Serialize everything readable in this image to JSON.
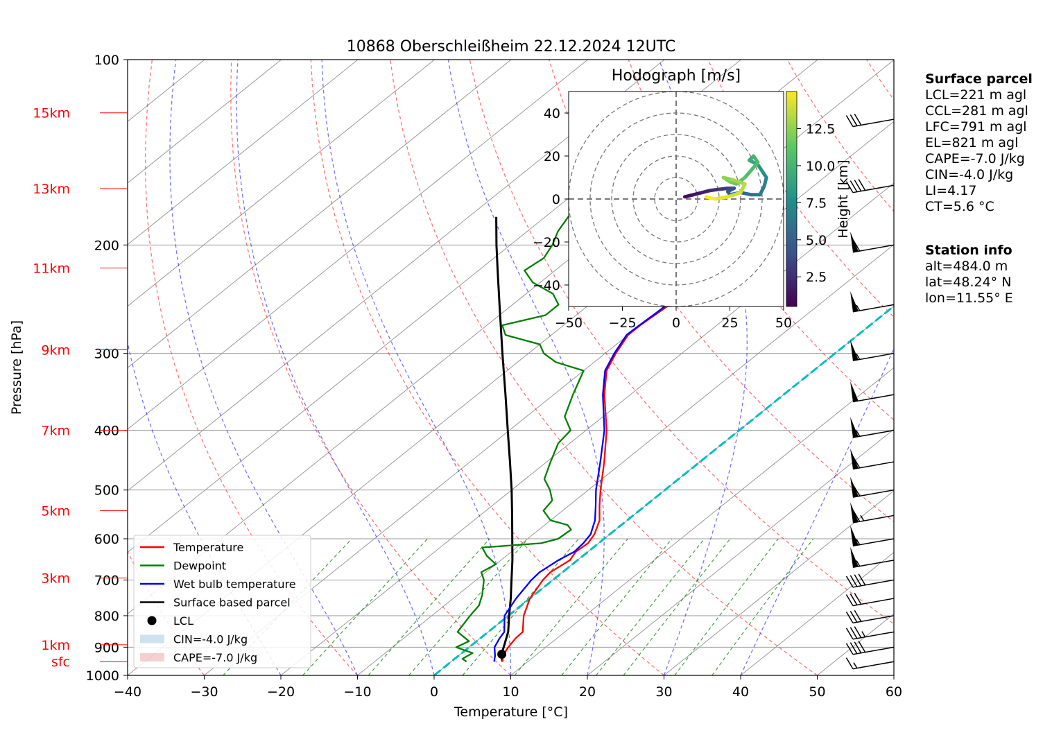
{
  "title": "10868 Oberschleißheim 22.12.2024 12UTC",
  "colors": {
    "temperature": "#ff0000",
    "dewpoint": "#008000",
    "wetbulb": "#0000ff",
    "parcel": "#000000",
    "dry_adiabat": "#ff0000",
    "moist_adiabat": "#0000ff",
    "mixing_ratio": "#008000",
    "isotherm_zero": "#00bfbf",
    "cin_fill": "#1f77b4",
    "cape_fill": "#d62728"
  },
  "chart_data": {
    "type": "skew-t",
    "xlabel": "Temperature [°C]",
    "ylabel": "Pressure [hPa]",
    "xlim": [
      -40,
      60
    ],
    "ylim": [
      1000,
      100
    ],
    "x_ticks": [
      "−40",
      "−30",
      "−20",
      "−10",
      "0",
      "10",
      "20",
      "30",
      "40",
      "50",
      "60"
    ],
    "x_tick_values": [
      -40,
      -30,
      -20,
      -10,
      0,
      10,
      20,
      30,
      40,
      50,
      60
    ],
    "p_ticks": [
      100,
      200,
      300,
      400,
      500,
      600,
      700,
      800,
      900,
      1000
    ],
    "height_markers": [
      {
        "label": "15km",
        "p": 122
      },
      {
        "label": "13km",
        "p": 162
      },
      {
        "label": "11km",
        "p": 218
      },
      {
        "label": "9km",
        "p": 296
      },
      {
        "label": "7km",
        "p": 400
      },
      {
        "label": "5km",
        "p": 540
      },
      {
        "label": "3km",
        "p": 695
      },
      {
        "label": "1km",
        "p": 892
      },
      {
        "label": "sfc",
        "p": 950
      }
    ],
    "temperature": [
      [
        950,
        6.7
      ],
      [
        930,
        5.8
      ],
      [
        900,
        5.1
      ],
      [
        870,
        4.6
      ],
      [
        850,
        4.5
      ],
      [
        800,
        2.0
      ],
      [
        750,
        0
      ],
      [
        700,
        -1.3
      ],
      [
        680,
        -1.6
      ],
      [
        650,
        -1.0
      ],
      [
        630,
        -1.6
      ],
      [
        610,
        -1.4
      ],
      [
        590,
        -2.0
      ],
      [
        560,
        -3.6
      ],
      [
        530,
        -6.0
      ],
      [
        500,
        -8.4
      ],
      [
        450,
        -12.5
      ],
      [
        400,
        -17.3
      ],
      [
        350,
        -23.4
      ],
      [
        320,
        -27.0
      ],
      [
        300,
        -28.6
      ],
      [
        280,
        -30.0
      ],
      [
        270,
        -30.0
      ],
      [
        250,
        -29.5
      ],
      [
        240,
        -29.0
      ],
      [
        230,
        -28.2
      ],
      [
        220,
        -28.8
      ],
      [
        210,
        -29.8
      ],
      [
        200,
        -31.4
      ],
      [
        190,
        -33.2
      ],
      [
        180,
        -36.0
      ],
      [
        170,
        -38.2
      ],
      [
        160,
        -41.2
      ],
      [
        150,
        -44.0
      ],
      [
        140,
        -47.5
      ],
      [
        130,
        -50.4
      ],
      [
        125,
        -51.5
      ],
      [
        123,
        -52.4
      ]
    ],
    "dewpoint": [
      [
        950,
        2.0
      ],
      [
        940,
        1.0
      ],
      [
        920,
        1.4
      ],
      [
        900,
        -1.7
      ],
      [
        880,
        -1.0
      ],
      [
        850,
        -4.0
      ],
      [
        800,
        -5.0
      ],
      [
        770,
        -5.5
      ],
      [
        740,
        -6.8
      ],
      [
        700,
        -9.0
      ],
      [
        680,
        -10.6
      ],
      [
        660,
        -10.0
      ],
      [
        640,
        -12.5
      ],
      [
        620,
        -14.5
      ],
      [
        610,
        -7.5
      ],
      [
        600,
        -6.0
      ],
      [
        580,
        -5.8
      ],
      [
        570,
        -7.0
      ],
      [
        560,
        -10.0
      ],
      [
        540,
        -12.5
      ],
      [
        520,
        -13.0
      ],
      [
        500,
        -15.0
      ],
      [
        480,
        -17.5
      ],
      [
        450,
        -19.5
      ],
      [
        420,
        -21.5
      ],
      [
        400,
        -22.0
      ],
      [
        380,
        -25.0
      ],
      [
        350,
        -27.5
      ],
      [
        320,
        -30.0
      ],
      [
        310,
        -35.0
      ],
      [
        300,
        -38.0
      ],
      [
        290,
        -40.0
      ],
      [
        280,
        -46.0
      ],
      [
        270,
        -48.0
      ],
      [
        260,
        -44.0
      ],
      [
        250,
        -44.0
      ],
      [
        240,
        -46.5
      ],
      [
        230,
        -51.0
      ],
      [
        220,
        -54.0
      ],
      [
        210,
        -53.5
      ],
      [
        200,
        -54.5
      ],
      [
        190,
        -56.0
      ],
      [
        180,
        -57.0
      ],
      [
        170,
        -58.0
      ],
      [
        160,
        -59.0
      ],
      [
        150,
        -60.5
      ],
      [
        140,
        -61.5
      ],
      [
        130,
        -62.5
      ],
      [
        123,
        -63.0
      ]
    ],
    "wetbulb": [
      [
        950,
        5.6
      ],
      [
        930,
        4.8
      ],
      [
        900,
        3.3
      ],
      [
        870,
        2.5
      ],
      [
        850,
        2.1
      ],
      [
        800,
        -0.5
      ],
      [
        750,
        -1.8
      ],
      [
        700,
        -2.8
      ],
      [
        680,
        -3.0
      ],
      [
        650,
        -2.5
      ],
      [
        630,
        -1.8
      ],
      [
        610,
        -2.0
      ],
      [
        590,
        -2.5
      ],
      [
        560,
        -4.2
      ],
      [
        530,
        -6.5
      ],
      [
        500,
        -9.0
      ],
      [
        450,
        -13.0
      ],
      [
        400,
        -17.6
      ],
      [
        350,
        -23.6
      ],
      [
        320,
        -27.2
      ],
      [
        300,
        -28.8
      ],
      [
        280,
        -30.2
      ],
      [
        270,
        -30.1
      ],
      [
        250,
        -29.8
      ],
      [
        240,
        -29.3
      ],
      [
        230,
        -28.6
      ],
      [
        220,
        -29.2
      ],
      [
        210,
        -30.2
      ],
      [
        200,
        -31.8
      ],
      [
        190,
        -33.6
      ],
      [
        180,
        -36.4
      ],
      [
        170,
        -38.6
      ],
      [
        160,
        -41.6
      ],
      [
        150,
        -44.4
      ],
      [
        140,
        -47.9
      ],
      [
        130,
        -50.8
      ],
      [
        125,
        -52.0
      ],
      [
        123,
        -52.8
      ]
    ],
    "parcel": [
      [
        950,
        6.7
      ],
      [
        930,
        5.6
      ],
      [
        920,
        5.2
      ],
      [
        900,
        4.5
      ],
      [
        850,
        2.6
      ],
      [
        800,
        0.1
      ],
      [
        750,
        -2.5
      ],
      [
        700,
        -5.4
      ],
      [
        650,
        -8.5
      ],
      [
        600,
        -12.0
      ],
      [
        550,
        -15.8
      ],
      [
        500,
        -20.0
      ],
      [
        450,
        -24.8
      ],
      [
        400,
        -30.2
      ],
      [
        350,
        -36.3
      ],
      [
        300,
        -43.4
      ],
      [
        250,
        -51.7
      ],
      [
        220,
        -57.5
      ],
      [
        200,
        -61.8
      ],
      [
        180,
        -66.4
      ]
    ],
    "lcl": {
      "p": 924,
      "t": 5.4
    },
    "legend": [
      "Temperature",
      "Dewpoint",
      "Wet bulb temperature",
      "Surface based parcel",
      "LCL",
      "CIN=-4.0 J/kg",
      "CAPE=-7.0 J/kg"
    ],
    "legend_placement": "lower-left",
    "wind_barbs": [
      [
        950,
        15
      ],
      [
        900,
        40
      ],
      [
        850,
        35
      ],
      [
        800,
        30
      ],
      [
        750,
        30
      ],
      [
        700,
        40
      ],
      [
        650,
        55
      ],
      [
        600,
        55
      ],
      [
        550,
        65
      ],
      [
        500,
        60
      ],
      [
        450,
        60
      ],
      [
        400,
        55
      ],
      [
        350,
        50
      ],
      [
        300,
        55
      ],
      [
        250,
        55
      ],
      [
        200,
        60
      ],
      [
        160,
        40
      ],
      [
        125,
        30
      ]
    ],
    "hodograph": {
      "title": "Hodograph [m/s]",
      "xlim": [
        -50,
        50
      ],
      "ylim": [
        -50,
        50
      ],
      "ticks": [
        "−50",
        "−25",
        "0",
        "25",
        "50"
      ],
      "yticks": [
        "40",
        "20",
        "0",
        "−20",
        "−40"
      ],
      "tick_values_x": [
        -50,
        -25,
        0,
        25,
        50
      ],
      "tick_values_y": [
        40,
        20,
        0,
        -20,
        -40
      ],
      "rings": [
        10,
        20,
        30,
        40,
        50
      ],
      "colorbar_label": "Height [km]",
      "colorbar_ticks": [
        "2.5",
        "5.0",
        "7.5",
        "10.0",
        "12.5"
      ],
      "colorbar_tick_values": [
        2.5,
        5.0,
        7.5,
        10.0,
        12.5
      ],
      "colorbar_range": [
        0.5,
        15
      ],
      "trace": [
        [
          4,
          1,
          0.5
        ],
        [
          8,
          2,
          1
        ],
        [
          12,
          3,
          1.5
        ],
        [
          16,
          4,
          2
        ],
        [
          20,
          4.5,
          2.5
        ],
        [
          24,
          5,
          3
        ],
        [
          27,
          5,
          3.5
        ],
        [
          24,
          3.5,
          4
        ],
        [
          25,
          2,
          4.5
        ],
        [
          30,
          3,
          5
        ],
        [
          35,
          2,
          5.5
        ],
        [
          39,
          2,
          6
        ],
        [
          41,
          6,
          6.5
        ],
        [
          42,
          10,
          7
        ],
        [
          40,
          13,
          7.5
        ],
        [
          38,
          16,
          8
        ],
        [
          36,
          17,
          8.5
        ],
        [
          34,
          18,
          9
        ],
        [
          36,
          20,
          9.5
        ],
        [
          38,
          17,
          10
        ],
        [
          32,
          10,
          10.5
        ],
        [
          28,
          7,
          11
        ],
        [
          25,
          8,
          11.5
        ],
        [
          22,
          10,
          12
        ],
        [
          26,
          9,
          12.5
        ],
        [
          32,
          7,
          13
        ],
        [
          30,
          3,
          13.5
        ],
        [
          24,
          1,
          14
        ],
        [
          18,
          0,
          14.5
        ],
        [
          14,
          1,
          15
        ]
      ]
    }
  },
  "info": {
    "surface_header": "Surface parcel",
    "surface_lines": [
      "LCL=221 m agl",
      "CCL=281 m agl",
      "LFC=791 m agl",
      "EL=821 m agl",
      "CAPE=-7.0 J/kg",
      "CIN=-4.0 J/kg",
      "LI=4.17",
      "CT=5.6 °C"
    ],
    "station_header": "Station info",
    "station_lines": [
      "alt=484.0 m",
      "lat=48.24° N",
      "lon=11.55° E"
    ]
  }
}
